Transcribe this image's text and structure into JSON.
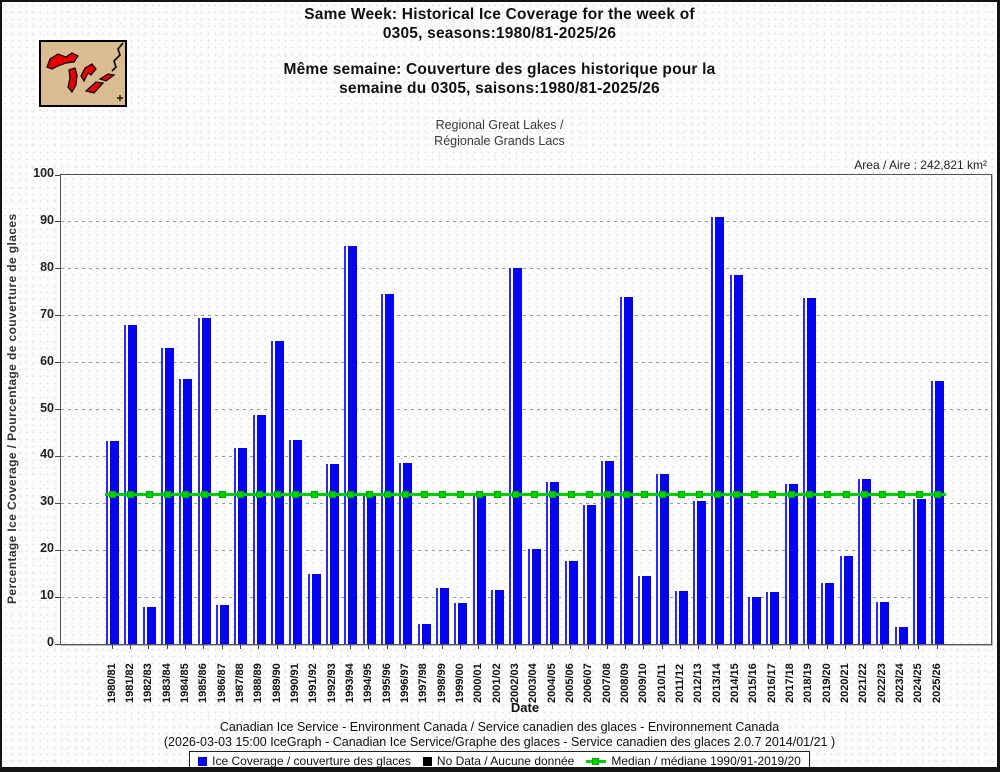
{
  "header": {
    "title_en_line1": "Same Week: Historical Ice Coverage for the week of",
    "title_en_line2": "0305, seasons:1980/81-2025/26",
    "title_fr_line1": "Même semaine: Couverture des glaces historique pour la",
    "title_fr_line2": "semaine du 0305, saisons:1980/81-2025/26",
    "subtitle_line1": "Regional Great Lakes /",
    "subtitle_line2": "Régionale Grands Lacs",
    "area_note": "Area / Aire : 242,821 km²",
    "logo_colors": {
      "background": "#d9bc8f",
      "lakes": "#e60000",
      "outline": "#000000"
    }
  },
  "chart_data": {
    "type": "bar",
    "title": "Same Week: Historical Ice Coverage for the week of 0305, seasons:1980/81-2025/26",
    "xlabel": "Date",
    "ylabel": "Percentage Ice Coverage / Pourcentage de couverture de glaces",
    "ylim": [
      0,
      100
    ],
    "yticks": [
      0,
      10,
      20,
      30,
      40,
      50,
      60,
      70,
      80,
      90,
      100
    ],
    "grid": "horizontal-dashed",
    "legend_position": "bottom",
    "bar_color": "#0404ee",
    "median_color": "#00d400",
    "categories": [
      "1980/81",
      "1981/82",
      "1982/83",
      "1983/84",
      "1984/85",
      "1985/86",
      "1986/87",
      "1987/88",
      "1988/89",
      "1989/90",
      "1990/91",
      "1991/92",
      "1992/93",
      "1993/94",
      "1994/95",
      "1995/96",
      "1996/97",
      "1997/98",
      "1998/99",
      "1999/00",
      "2000/01",
      "2001/02",
      "2002/03",
      "2003/04",
      "2004/05",
      "2005/06",
      "2006/07",
      "2007/08",
      "2008/09",
      "2009/10",
      "2010/11",
      "2011/12",
      "2012/13",
      "2013/14",
      "2014/15",
      "2015/16",
      "2016/17",
      "2017/18",
      "2018/19",
      "2019/20",
      "2020/21",
      "2021/22",
      "2022/23",
      "2023/24",
      "2024/25",
      "2025/26"
    ],
    "values": [
      43.2,
      68.0,
      7.8,
      63.2,
      56.5,
      69.5,
      8.3,
      41.8,
      48.8,
      64.6,
      43.5,
      14.9,
      38.3,
      84.8,
      31.6,
      74.6,
      38.7,
      4.2,
      12.0,
      8.8,
      31.7,
      11.6,
      80.2,
      20.2,
      34.5,
      17.7,
      29.6,
      39.0,
      74.0,
      14.6,
      36.2,
      11.4,
      30.4,
      91.0,
      78.6,
      10.0,
      11.0,
      34.1,
      73.8,
      13.0,
      18.8,
      35.2,
      8.9,
      3.7,
      31.0,
      56.0
    ],
    "median": {
      "value": 31.8,
      "period": "1990/91-2019/20"
    }
  },
  "footer": {
    "line1": "Canadian Ice Service - Environment Canada / Service canadien des glaces - Environnement Canada",
    "line2": "(2026-03-03 15:00 IceGraph - Canadian Ice Service/Graphe des glaces - Service canadien des glaces 2.0.7 2014/01/21 )",
    "legend": [
      {
        "marker": "blue-square",
        "color": "#0404ee",
        "label": "Ice Coverage / couverture des glaces"
      },
      {
        "marker": "black-square",
        "color": "#000000",
        "label": "No Data / Aucune donnée"
      },
      {
        "marker": "green-line",
        "color": "#00d400",
        "label": "Median / médiane 1990/91-2019/20"
      }
    ]
  }
}
